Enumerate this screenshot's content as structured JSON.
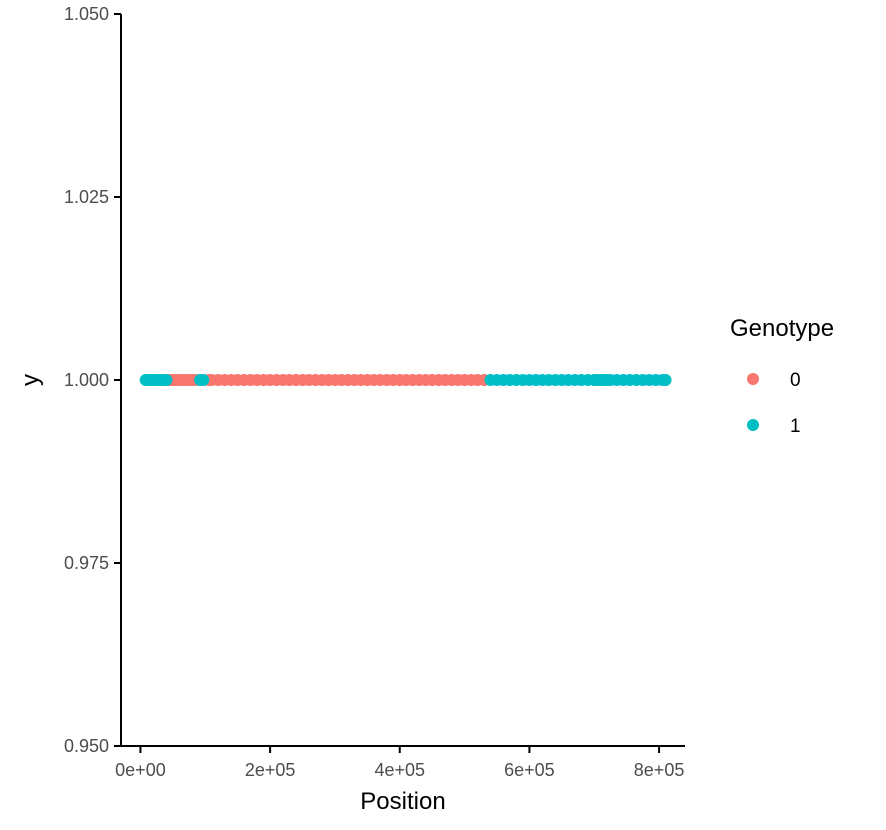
{
  "chart_data": {
    "type": "scatter",
    "title": "",
    "xlabel": "Position",
    "ylabel": "y",
    "xlim": [
      -30000,
      840000
    ],
    "ylim": [
      0.95,
      1.05
    ],
    "x_ticks": [
      0,
      200000,
      400000,
      600000,
      800000
    ],
    "x_tick_labels": [
      "0e+00",
      "2e+05",
      "4e+05",
      "6e+05",
      "8e+05"
    ],
    "y_ticks": [
      0.95,
      0.975,
      1.0,
      1.025,
      1.05
    ],
    "y_tick_labels": [
      "0.950",
      "0.975",
      "1.000",
      "1.025",
      "1.050"
    ],
    "grid": false,
    "legend": {
      "title": "Genotype",
      "position": "right",
      "entries": [
        {
          "label": "0",
          "color": "#F8766D"
        },
        {
          "label": "1",
          "color": "#00BFC4"
        }
      ]
    },
    "series": [
      {
        "name": "0",
        "color": "#F8766D",
        "x": [
          45000,
          50000,
          55000,
          60000,
          65000,
          70000,
          75000,
          80000,
          85000,
          105000,
          110000,
          120000,
          130000,
          140000,
          150000,
          160000,
          170000,
          180000,
          190000,
          200000,
          210000,
          220000,
          230000,
          240000,
          250000,
          260000,
          270000,
          280000,
          290000,
          300000,
          310000,
          320000,
          330000,
          340000,
          350000,
          360000,
          370000,
          380000,
          390000,
          400000,
          410000,
          420000,
          430000,
          440000,
          450000,
          460000,
          470000,
          480000,
          490000,
          500000,
          510000,
          520000,
          530000
        ],
        "y": [
          1,
          1,
          1,
          1,
          1,
          1,
          1,
          1,
          1,
          1,
          1,
          1,
          1,
          1,
          1,
          1,
          1,
          1,
          1,
          1,
          1,
          1,
          1,
          1,
          1,
          1,
          1,
          1,
          1,
          1,
          1,
          1,
          1,
          1,
          1,
          1,
          1,
          1,
          1,
          1,
          1,
          1,
          1,
          1,
          1,
          1,
          1,
          1,
          1,
          1,
          1,
          1,
          1
        ]
      },
      {
        "name": "1",
        "color": "#00BFC4",
        "x": [
          8000,
          12000,
          16000,
          20000,
          25000,
          30000,
          35000,
          40000,
          92000,
          97000,
          540000,
          550000,
          560000,
          570000,
          580000,
          590000,
          600000,
          610000,
          620000,
          630000,
          640000,
          650000,
          660000,
          670000,
          680000,
          690000,
          700000,
          705000,
          710000,
          715000,
          720000,
          725000,
          735000,
          745000,
          755000,
          765000,
          775000,
          785000,
          795000,
          805000,
          810000
        ],
        "y": [
          1,
          1,
          1,
          1,
          1,
          1,
          1,
          1,
          1,
          1,
          1,
          1,
          1,
          1,
          1,
          1,
          1,
          1,
          1,
          1,
          1,
          1,
          1,
          1,
          1,
          1,
          1,
          1,
          1,
          1,
          1,
          1,
          1,
          1,
          1,
          1,
          1,
          1,
          1,
          1,
          1
        ]
      }
    ]
  }
}
